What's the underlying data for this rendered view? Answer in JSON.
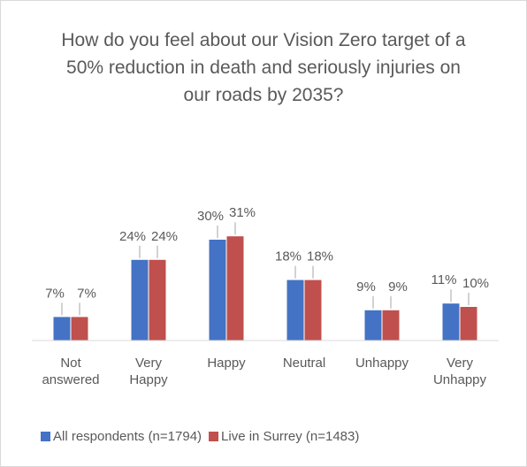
{
  "chart_data": {
    "type": "bar",
    "title": "How do you feel about our Vision Zero target of a 50% reduction in death and seriously injuries on our roads by 2035?",
    "categories": [
      "Not answered",
      "Very Happy",
      "Happy",
      "Neutral",
      "Unhappy",
      "Very Unhappy"
    ],
    "series": [
      {
        "name": "All respondents (n=1794)",
        "color": "#4472c4",
        "values": [
          7,
          24,
          30,
          18,
          9,
          11
        ],
        "value_labels": [
          "7%",
          "24%",
          "30%",
          "18%",
          "9%",
          "11%"
        ]
      },
      {
        "name": "Live in Surrey (n=1483)",
        "color": "#c0504d",
        "values": [
          7,
          24,
          31,
          18,
          9,
          10
        ],
        "value_labels": [
          "7%",
          "24%",
          "31%",
          "18%",
          "9%",
          "10%"
        ]
      }
    ],
    "legend": "bottom"
  }
}
